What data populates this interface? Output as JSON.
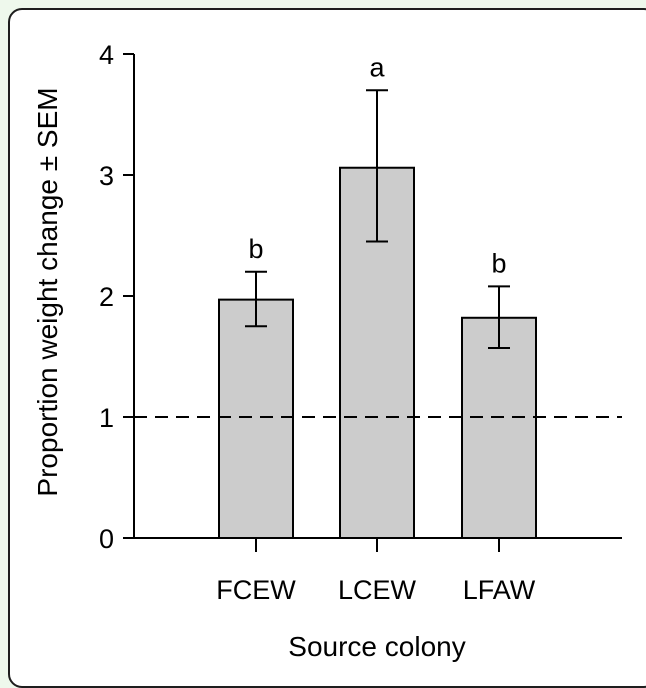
{
  "chart_data": {
    "type": "bar",
    "title": "",
    "xlabel": "Source colony",
    "ylabel": "Proportion weight change ± SEM",
    "categories": [
      "FCEW",
      "LCEW",
      "LFAW"
    ],
    "values": [
      1.97,
      3.06,
      1.82
    ],
    "errors": [
      {
        "low": 1.75,
        "high": 2.2
      },
      {
        "low": 2.45,
        "high": 3.7
      },
      {
        "low": 1.57,
        "high": 2.08
      }
    ],
    "significance_letters": [
      "b",
      "a",
      "b"
    ],
    "ylim": [
      0,
      4
    ],
    "yticks": [
      "0",
      "1",
      "2",
      "3",
      "4"
    ],
    "reference_line": {
      "value": 1,
      "style": "dashed"
    },
    "bar_color": "#cccccc",
    "grid": false,
    "legend": "none"
  }
}
